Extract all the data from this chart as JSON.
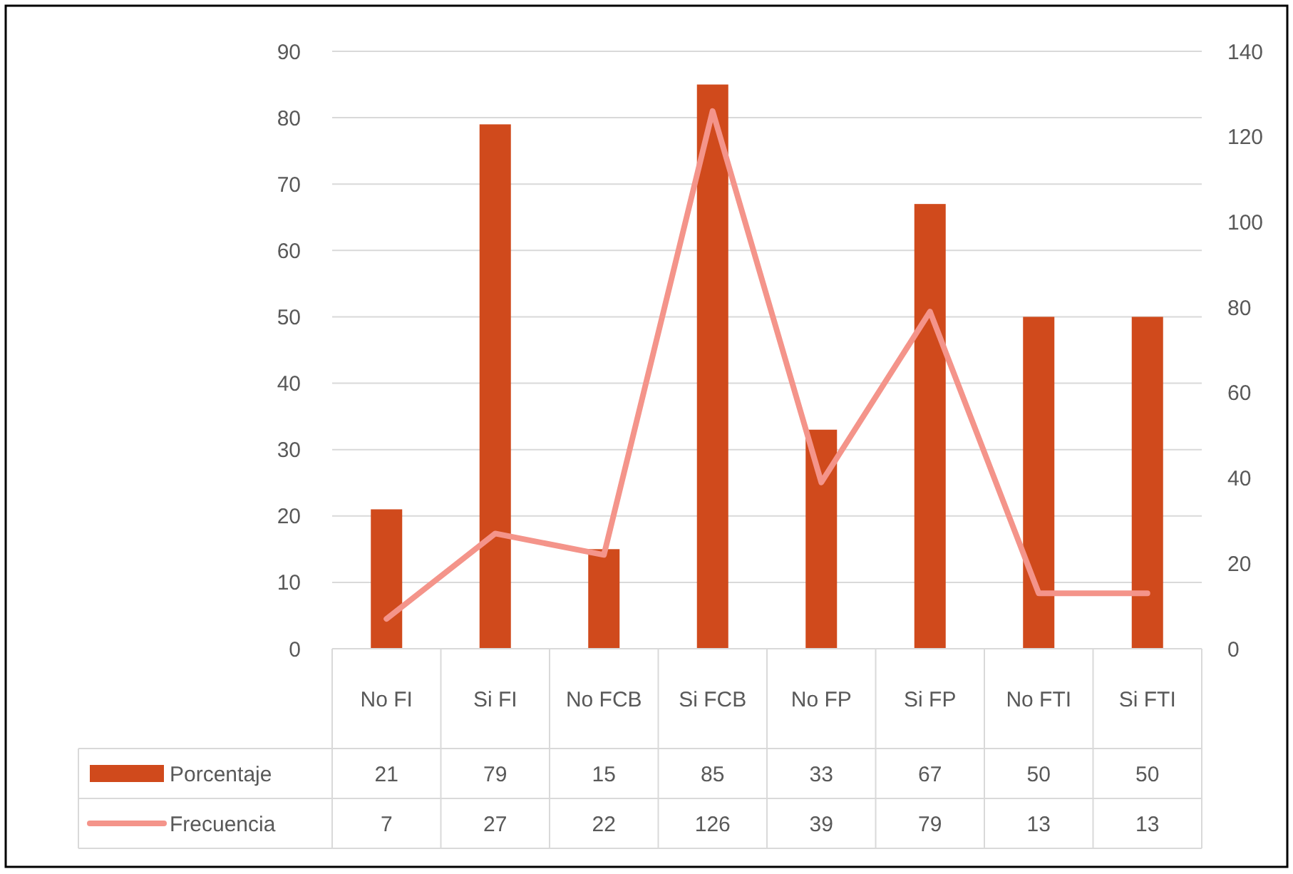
{
  "chart_data": {
    "type": "bar",
    "categories": [
      "No FI",
      "Si FI",
      "No FCB",
      "Si FCB",
      "No FP",
      "Si FP",
      "No FTI",
      "Si FTI"
    ],
    "series": [
      {
        "name": "Porcentaje",
        "color": "#d04a1c",
        "values": [
          21,
          79,
          15,
          85,
          33,
          67,
          50,
          50
        ]
      },
      {
        "name": "Frecuencia",
        "type": "line",
        "axis": "y2",
        "color": "#f4948a",
        "values": [
          7,
          27,
          22,
          126,
          39,
          79,
          13,
          13
        ]
      }
    ],
    "ylim": [
      0,
      90
    ],
    "yticks": [
      0,
      10,
      20,
      30,
      40,
      50,
      60,
      70,
      80,
      90
    ],
    "y2lim": [
      0,
      140
    ],
    "y2ticks": [
      0,
      20,
      40,
      60,
      80,
      100,
      120,
      140
    ],
    "grid": "y",
    "legend": "bottom",
    "data_labels": true,
    "marker": "none"
  }
}
